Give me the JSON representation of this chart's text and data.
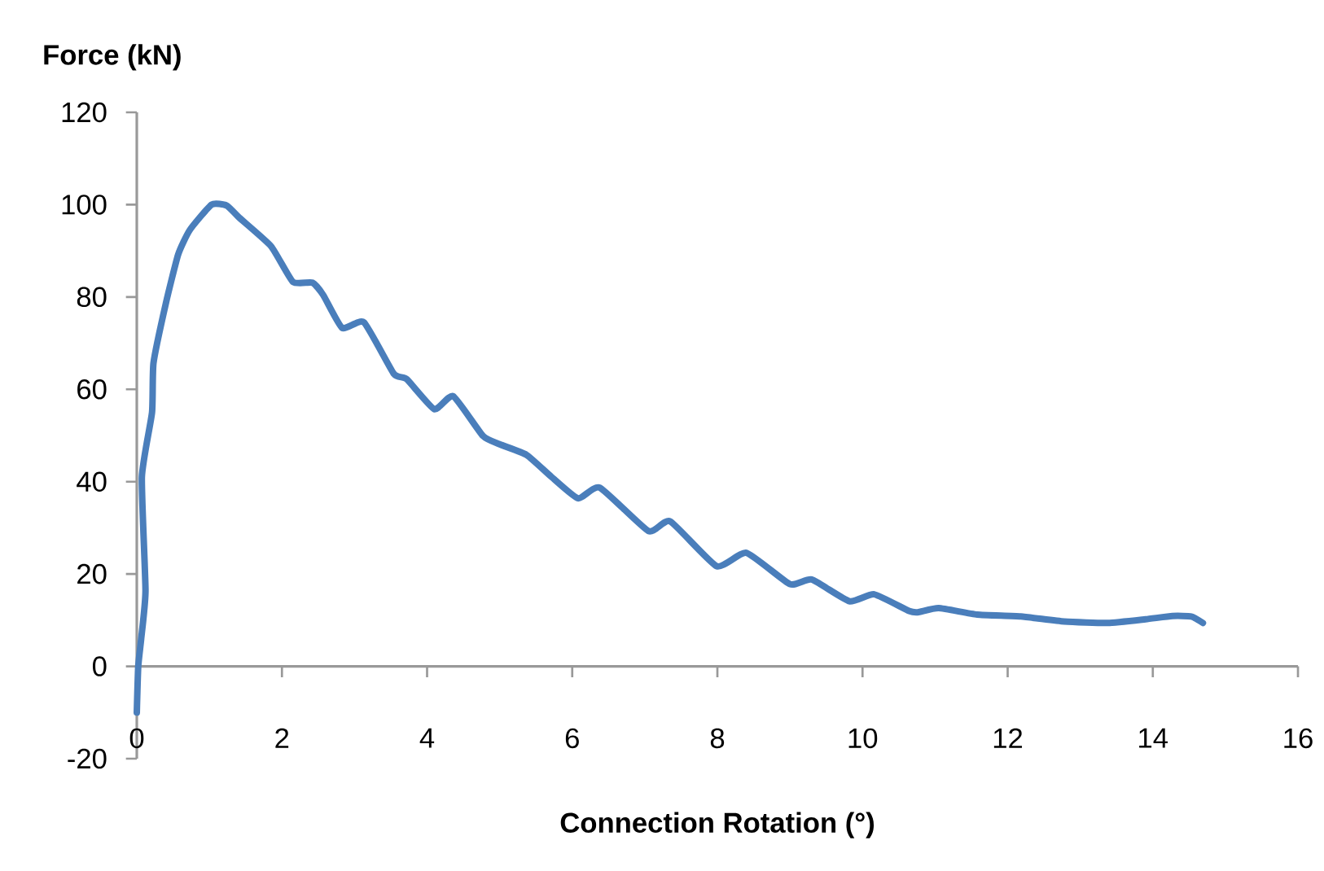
{
  "chart_data": {
    "type": "line",
    "xlabel": "Connection Rotation (°)",
    "ylabel": "Force (kN)",
    "xlim": [
      0,
      16
    ],
    "xticks": [
      0,
      2,
      4,
      6,
      8,
      10,
      12,
      14,
      16
    ],
    "ylim": [
      -20,
      120
    ],
    "yticks": [
      -20,
      0,
      20,
      40,
      60,
      80,
      100,
      120
    ],
    "series": [
      {
        "color": "#4a7ebb",
        "x": [
          0.0,
          0.02,
          0.06,
          0.12,
          0.07,
          0.21,
          0.23,
          0.4,
          0.57,
          0.73,
          1.03,
          1.24,
          1.41,
          1.85,
          2.15,
          2.42,
          2.57,
          2.83,
          3.13,
          3.54,
          3.72,
          4.1,
          4.36,
          4.77,
          5.0,
          5.37,
          5.71,
          6.08,
          6.38,
          7.05,
          7.35,
          7.99,
          8.4,
          9.0,
          9.3,
          9.82,
          10.16,
          10.64,
          10.76,
          11.05,
          11.58,
          12.18,
          12.78,
          13.38,
          13.9,
          14.27,
          14.53,
          14.69
        ],
        "values": [
          -10,
          0,
          5.9,
          16.4,
          41,
          55,
          65.7,
          78.6,
          89.2,
          94.5,
          100,
          99.8,
          97.2,
          91,
          83.3,
          83.1,
          80.4,
          73.3,
          74.5,
          63.4,
          62.2,
          55.7,
          58.5,
          49.9,
          48.1,
          45.8,
          41.1,
          36.4,
          38.7,
          29.3,
          31.4,
          21.7,
          24.6,
          17.8,
          18.8,
          14.1,
          15.6,
          12.0,
          11.7,
          12.6,
          11.2,
          10.8,
          9.7,
          9.4,
          10.2,
          10.9,
          10.8,
          9.4
        ]
      }
    ]
  }
}
